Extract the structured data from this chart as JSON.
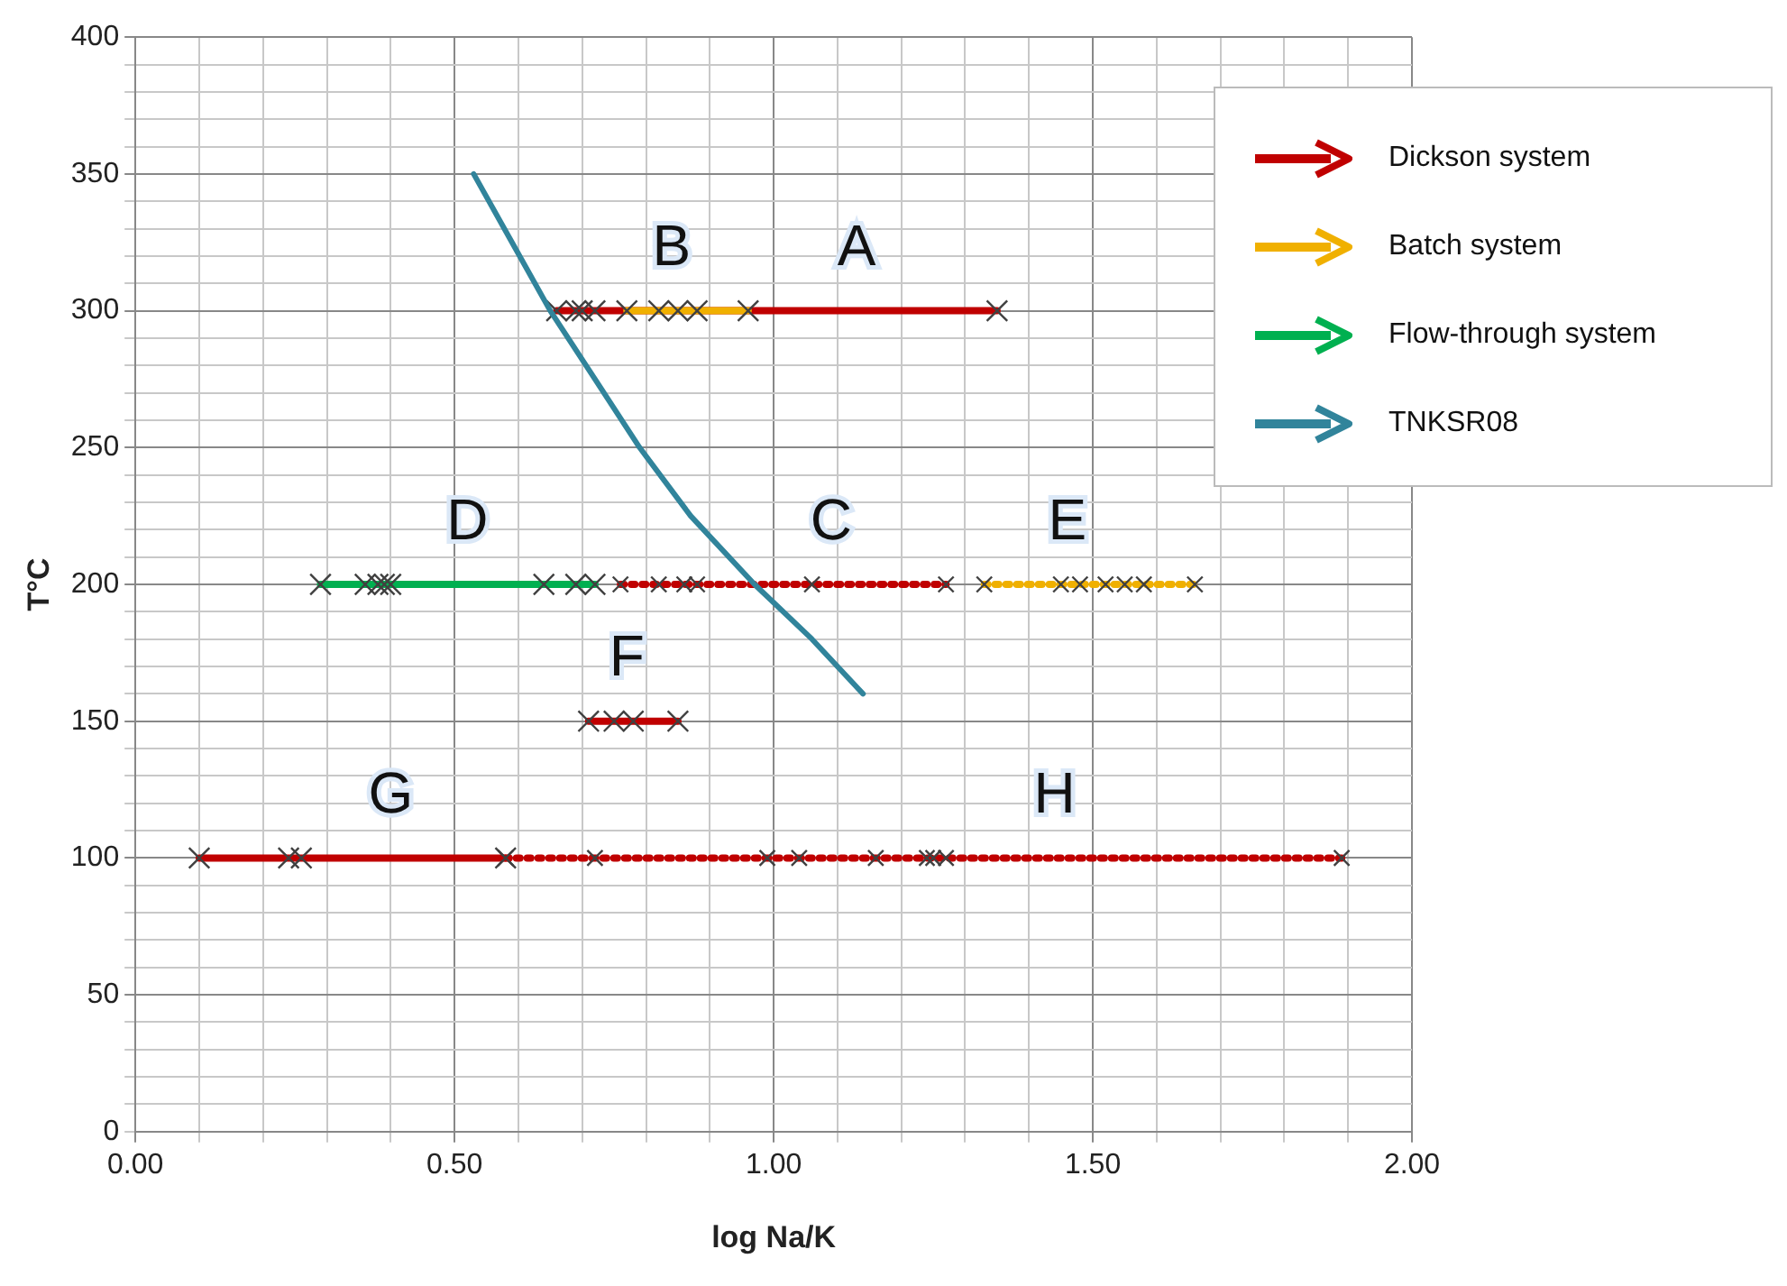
{
  "chart_data": {
    "type": "line",
    "xlabel": "log Na/K",
    "ylabel": "T°C",
    "xlim": [
      0,
      2
    ],
    "ylim": [
      0,
      400
    ],
    "xticks": [
      {
        "value": 0,
        "label": "0.00"
      },
      {
        "value": 0.1,
        "label": null
      },
      {
        "value": 0.2,
        "label": null
      },
      {
        "value": 0.3,
        "label": null
      },
      {
        "value": 0.4,
        "label": null
      },
      {
        "value": 0.5,
        "label": "0.50"
      },
      {
        "value": 0.6,
        "label": null
      },
      {
        "value": 0.7,
        "label": null
      },
      {
        "value": 0.8,
        "label": null
      },
      {
        "value": 0.9,
        "label": null
      },
      {
        "value": 1,
        "label": "1.00"
      },
      {
        "value": 1.1,
        "label": null
      },
      {
        "value": 1.2,
        "label": null
      },
      {
        "value": 1.3,
        "label": null
      },
      {
        "value": 1.4,
        "label": null
      },
      {
        "value": 1.5,
        "label": "1.50"
      },
      {
        "value": 1.6,
        "label": null
      },
      {
        "value": 1.7,
        "label": null
      },
      {
        "value": 1.8,
        "label": null
      },
      {
        "value": 1.9,
        "label": null
      },
      {
        "value": 2,
        "label": "2.00"
      }
    ],
    "yticks": [
      0,
      {
        "value": 10,
        "label": null
      },
      {
        "value": 20,
        "label": null
      },
      {
        "value": 30,
        "label": null
      },
      {
        "value": 40,
        "label": null
      },
      50,
      {
        "value": 60,
        "label": null
      },
      {
        "value": 70,
        "label": null
      },
      {
        "value": 80,
        "label": null
      },
      {
        "value": 90,
        "label": null
      },
      100,
      {
        "value": 110,
        "label": null
      },
      {
        "value": 120,
        "label": null
      },
      {
        "value": 130,
        "label": null
      },
      {
        "value": 140,
        "label": null
      },
      150,
      {
        "value": 160,
        "label": null
      },
      {
        "value": 170,
        "label": null
      },
      {
        "value": 180,
        "label": null
      },
      {
        "value": 190,
        "label": null
      },
      200,
      {
        "value": 210,
        "label": null
      },
      {
        "value": 220,
        "label": null
      },
      {
        "value": 230,
        "label": null
      },
      {
        "value": 240,
        "label": null
      },
      250,
      {
        "value": 260,
        "label": null
      },
      {
        "value": 270,
        "label": null
      },
      {
        "value": 280,
        "label": null
      },
      {
        "value": 290,
        "label": null
      },
      300,
      {
        "value": 310,
        "label": null
      },
      {
        "value": 320,
        "label": null
      },
      {
        "value": 330,
        "label": null
      },
      {
        "value": 340,
        "label": null
      },
      350,
      {
        "value": 360,
        "label": null
      },
      {
        "value": 370,
        "label": null
      },
      {
        "value": 380,
        "label": null
      },
      {
        "value": 390,
        "label": null
      },
      400
    ],
    "grid": true,
    "legend": "top right",
    "series": [
      {
        "name": "Dickson system",
        "color": "#c00000",
        "line_style": "solid",
        "marker": "cross",
        "x": [
          0.66,
          0.69,
          0.7,
          0.72,
          1.35
        ],
        "values": [
          300,
          300,
          300,
          300,
          300
        ]
      },
      {
        "color": "#c00000",
        "line_style": "dotted",
        "marker": "cross",
        "x": [
          0.76,
          0.82,
          0.86,
          0.88,
          1.06,
          1.27
        ],
        "values": [
          200,
          200,
          200,
          200,
          200,
          200
        ]
      },
      {
        "color": "#c00000",
        "line_style": "solid",
        "marker": "cross",
        "x": [
          0.71,
          0.75,
          0.78,
          0.85
        ],
        "values": [
          150,
          150,
          150,
          150
        ]
      },
      {
        "color": "#c00000",
        "line_style": "solid",
        "marker": "cross",
        "x": [
          0.1,
          0.24,
          0.26,
          0.58
        ],
        "values": [
          100,
          100,
          100,
          100
        ]
      },
      {
        "color": "#c00000",
        "line_style": "dotted",
        "marker": "cross",
        "x": [
          0.58,
          0.72,
          0.99,
          1.04,
          1.16,
          1.24,
          1.25,
          1.27,
          1.89
        ],
        "values": [
          100,
          100,
          100,
          100,
          100,
          100,
          100,
          100,
          100
        ]
      },
      {
        "name": "Batch system",
        "color": "#f0b000",
        "line_style": "solid",
        "marker": "cross",
        "x": [
          0.77,
          0.82,
          0.85,
          0.88,
          0.96
        ],
        "values": [
          300,
          300,
          300,
          300,
          300
        ]
      },
      {
        "color": "#f0b000",
        "line_style": "dotted",
        "marker": "cross",
        "x": [
          1.33,
          1.45,
          1.48,
          1.52,
          1.55,
          1.58,
          1.66
        ],
        "values": [
          200,
          200,
          200,
          200,
          200,
          200,
          200
        ]
      },
      {
        "name": "Flow-through system",
        "color": "#00b050",
        "line_style": "solid",
        "marker": "cross",
        "x": [
          0.29,
          0.36,
          0.38,
          0.39,
          0.4,
          0.64,
          0.69,
          0.72
        ],
        "values": [
          200,
          200,
          200,
          200,
          200,
          200,
          200,
          200
        ]
      },
      {
        "name": "TNKSR08",
        "color": "#31849b",
        "line_style": "solid",
        "marker": "none",
        "x": [
          0.53,
          0.59,
          0.65,
          0.72,
          0.79,
          0.87,
          0.97,
          1.06,
          1.14
        ],
        "values": [
          350,
          325,
          300,
          275,
          250,
          225,
          200,
          180,
          160
        ]
      }
    ],
    "annotations": [
      {
        "text": "A",
        "x": 1.13,
        "y": 300
      },
      {
        "text": "B",
        "x": 0.84,
        "y": 300
      },
      {
        "text": "C",
        "x": 1.09,
        "y": 200
      },
      {
        "text": "D",
        "x": 0.52,
        "y": 200
      },
      {
        "text": "E",
        "x": 1.46,
        "y": 200
      },
      {
        "text": "F",
        "x": 0.77,
        "y": 150
      },
      {
        "text": "G",
        "x": 0.4,
        "y": 100
      },
      {
        "text": "H",
        "x": 1.44,
        "y": 100
      }
    ]
  }
}
